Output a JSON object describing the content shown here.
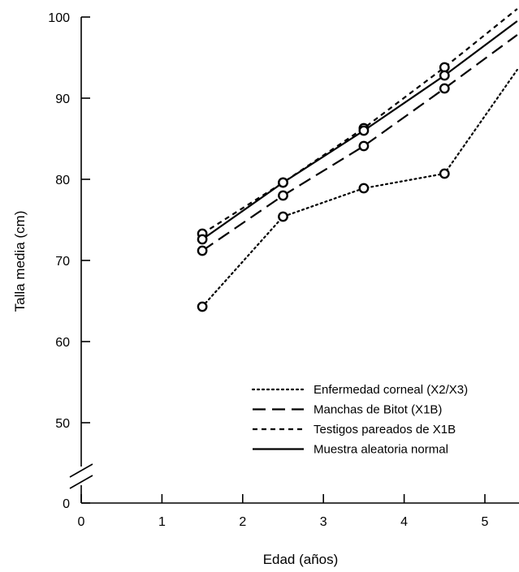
{
  "chart_data": {
    "type": "line",
    "xlabel": "Edad (años)",
    "ylabel": "Talla media (cm)",
    "xlim": [
      0,
      5.4
    ],
    "ylim": [
      45,
      100
    ],
    "axis_break": true,
    "x_ticks": [
      "0",
      "1",
      "2",
      "3",
      "4",
      "5"
    ],
    "y_ticks": [
      "0",
      "50",
      "60",
      "70",
      "80",
      "90",
      "100"
    ],
    "legend_position": "bottom-right",
    "series": [
      {
        "name": "Enfermedad corneal (X2/X3)",
        "dash": "dotted",
        "markers": [
          1.5,
          2.5,
          3.5,
          4.5
        ],
        "x": [
          1.5,
          2.5,
          3.5,
          4.5,
          5.4
        ],
        "y": [
          64.3,
          75.4,
          78.9,
          80.7,
          93.5
        ]
      },
      {
        "name": "Manchas de Bitot (X1B)",
        "dash": "long-dash",
        "markers": [
          1.5,
          2.5,
          3.5,
          4.5
        ],
        "x": [
          1.5,
          2.5,
          3.5,
          4.5,
          5.4
        ],
        "y": [
          71.2,
          78.0,
          84.1,
          91.2,
          97.8
        ]
      },
      {
        "name": "Testigos pareados de X1B",
        "dash": "short-dash",
        "markers": [
          1.5,
          2.5,
          3.5,
          4.5
        ],
        "x": [
          1.5,
          2.5,
          3.5,
          4.5,
          5.4
        ],
        "y": [
          73.3,
          79.6,
          86.3,
          93.8,
          101.0
        ]
      },
      {
        "name": "Muestra aleatoria normal",
        "dash": "solid",
        "markers": [
          1.5,
          2.5,
          3.5,
          4.5
        ],
        "x": [
          1.5,
          2.5,
          3.5,
          4.5,
          5.4
        ],
        "y": [
          72.6,
          79.6,
          86.0,
          92.8,
          99.5
        ]
      }
    ]
  }
}
